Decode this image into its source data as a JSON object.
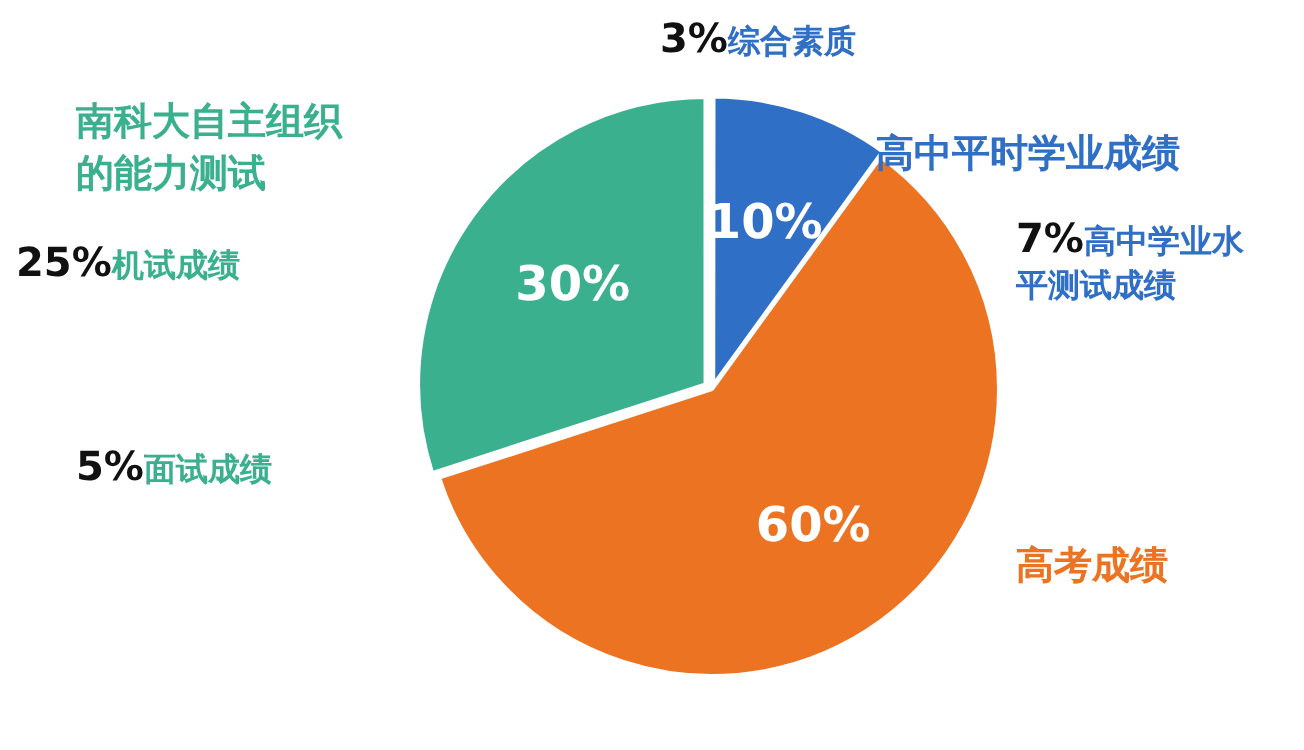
{
  "chart_data": {
    "type": "pie",
    "categories": [
      "高中平时学业成绩",
      "高考成绩",
      "南科大自主组织的能力测试"
    ],
    "values": [
      10,
      60,
      30
    ],
    "colors": [
      "#2f6fc6",
      "#ec7322",
      "#3bb08f"
    ],
    "value_labels": [
      "10%",
      "60%",
      "30%"
    ],
    "legend": false,
    "annotations": [
      "3%综合素质",
      "7%高中学业水平测试成绩",
      "25%机试成绩",
      "5%面试成绩"
    ]
  }
}
